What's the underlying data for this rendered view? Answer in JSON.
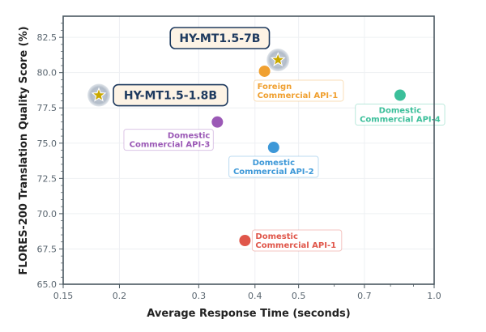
{
  "chart_data": {
    "type": "scatter",
    "title": "",
    "xlabel": "Average Response Time (seconds)",
    "ylabel": "FLORES-200 Translation Quality Score (%)",
    "xscale": "log",
    "xlim": [
      0.15,
      1.0
    ],
    "ylim": [
      65.0,
      84.0
    ],
    "xticks": [
      "0.15",
      "0.2",
      "0.3",
      "0.4",
      "0.5",
      "0.7",
      "1.0"
    ],
    "xtick_values": [
      0.15,
      0.2,
      0.3,
      0.4,
      0.5,
      0.7,
      1.0
    ],
    "yticks": [
      "65.0",
      "67.5",
      "70.0",
      "72.5",
      "75.0",
      "77.5",
      "80.0",
      "82.5"
    ],
    "ytick_values": [
      65.0,
      67.5,
      70.0,
      72.5,
      75.0,
      77.5,
      80.0,
      82.5
    ],
    "grid": true,
    "points": [
      {
        "name": "HY-MT1.5-7B",
        "line1": "HY-MT1.5-7B",
        "line2": "",
        "x": 0.45,
        "y": 80.9,
        "color": "#c9a800",
        "marker": "star",
        "label_pos": "upper-left"
      },
      {
        "name": "HY-MT1.5-1.8B",
        "line1": "HY-MT1.5-1.8B",
        "line2": "",
        "x": 0.18,
        "y": 78.4,
        "color": "#c9a800",
        "marker": "star",
        "label_pos": "right"
      },
      {
        "name": "Foreign Commercial API-1",
        "line1": "Foreign",
        "line2": "Commercial API-1",
        "x": 0.42,
        "y": 80.1,
        "color": "#f0a030",
        "marker": "circle",
        "label_pos": "below-right"
      },
      {
        "name": "Domestic Commercial API-4",
        "line1": "Domestic",
        "line2": "Commercial API-4",
        "x": 0.84,
        "y": 78.4,
        "color": "#3bbf9a",
        "marker": "circle",
        "label_pos": "below"
      },
      {
        "name": "Domestic Commercial API-3",
        "line1": "Domestic",
        "line2": "Commercial API-3",
        "x": 0.33,
        "y": 76.5,
        "color": "#9b59b6",
        "marker": "circle",
        "label_pos": "below-left"
      },
      {
        "name": "Domestic Commercial API-2",
        "line1": "Domestic",
        "line2": "Commercial API-2",
        "x": 0.44,
        "y": 74.7,
        "color": "#3d98d8",
        "marker": "circle",
        "label_pos": "below"
      },
      {
        "name": "Domestic Commercial API-1",
        "line1": "Domestic",
        "line2": "Commercial API-1",
        "x": 0.38,
        "y": 68.1,
        "color": "#e0564a",
        "marker": "circle",
        "label_pos": "right"
      }
    ]
  }
}
